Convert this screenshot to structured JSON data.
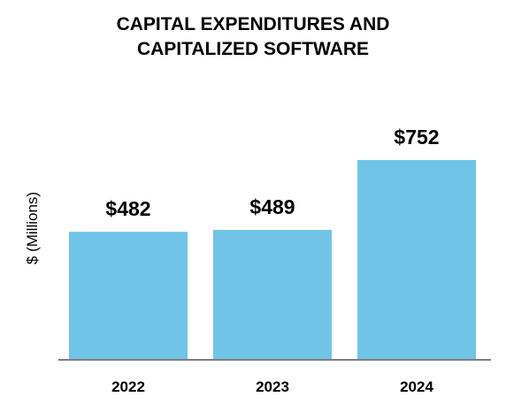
{
  "chart_data": {
    "type": "bar",
    "title_lines": [
      "CAPITAL EXPENDITURES AND",
      "CAPITALIZED SOFTWARE"
    ],
    "categories": [
      "2022",
      "2023",
      "2024"
    ],
    "values": [
      482,
      489,
      752
    ],
    "value_labels": [
      "$482",
      "$489",
      "$752"
    ],
    "xlabel": "",
    "ylabel": "$ (Millions)",
    "ylim": [
      0,
      800
    ],
    "grid": false,
    "legend": "none",
    "bar_color": "#70C4E8",
    "axis_color": "#7F7F7F"
  }
}
